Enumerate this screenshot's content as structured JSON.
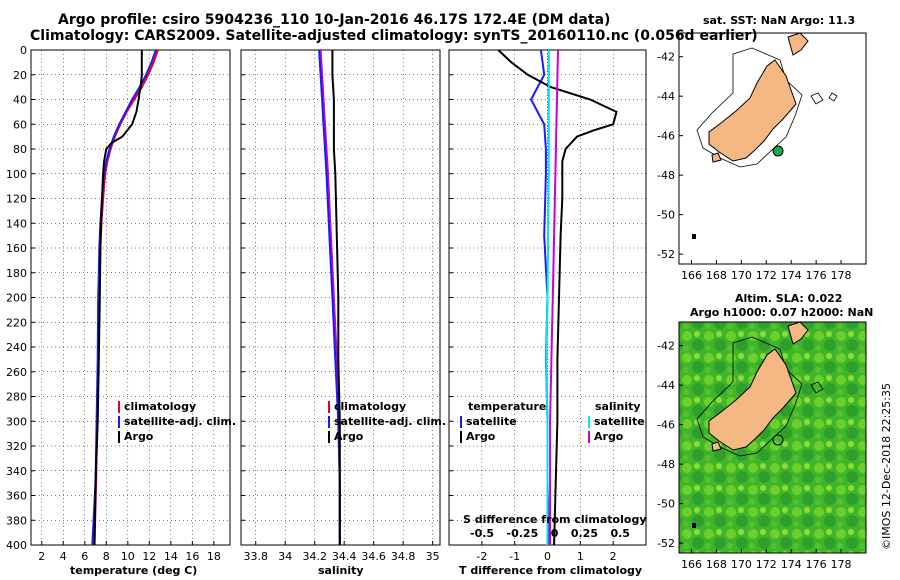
{
  "title": {
    "line1": "Argo profile: csiro 5904236_110 10-Jan-2016 46.17S 172.4E (DM data)",
    "line2": "Climatology: CARS2009. Satellite-adjusted climatology: synTS_20160110.nc (0.056d earlier)"
  },
  "side": {
    "sst_title": "sat. SST: NaN Argo: 11.3",
    "sla_title1": "Altim. SLA: 0.022",
    "sla_title2": "Argo h1000: 0.07 h2000: NaN",
    "credit": "©IMOS 12-Dec-2018 22:25:35"
  },
  "depth_ticks": [
    "0",
    "20",
    "40",
    "60",
    "80",
    "100",
    "120",
    "140",
    "160",
    "180",
    "200",
    "220",
    "240",
    "260",
    "280",
    "300",
    "320",
    "340",
    "360",
    "380",
    "400"
  ],
  "colors": {
    "climatology": "#e8001c",
    "satellite": "#1a1aff",
    "argo": "#000000",
    "satellite_s": "#00e5ee",
    "climatology_s": "#cc00cc",
    "land": "#f5b883",
    "sst_dot": "#1aa84a"
  },
  "chart_data": [
    {
      "type": "line",
      "name": "temperature-profile",
      "xlabel": "temperature (deg C)",
      "ylabel": "depth",
      "xlim": [
        1,
        19.5
      ],
      "ylim": [
        400,
        0
      ],
      "xticks": [
        "2",
        "4",
        "6",
        "8",
        "10",
        "12",
        "14",
        "16",
        "18"
      ],
      "legend": [
        "climatology",
        "satellite-adj. clim.",
        "Argo"
      ],
      "series": [
        {
          "name": "climatology",
          "depth": [
            0,
            10,
            20,
            30,
            40,
            50,
            60,
            70,
            80,
            90,
            100,
            110,
            120,
            140,
            160,
            180,
            200,
            250,
            300,
            350,
            400
          ],
          "values": [
            12.8,
            12.4,
            11.9,
            11.3,
            10.6,
            9.9,
            9.3,
            8.8,
            8.4,
            8.1,
            7.9,
            7.8,
            7.7,
            7.55,
            7.45,
            7.4,
            7.35,
            7.25,
            7.15,
            7.05,
            6.9
          ]
        },
        {
          "name": "satellite-adj. clim.",
          "depth": [
            0,
            10,
            20,
            30,
            40,
            50,
            60,
            70,
            80,
            90,
            100,
            110,
            120,
            140,
            160,
            180,
            200,
            250,
            300,
            350,
            400
          ],
          "values": [
            12.6,
            12.2,
            11.7,
            11.1,
            10.4,
            9.8,
            9.2,
            8.7,
            8.3,
            8.0,
            7.8,
            7.7,
            7.6,
            7.45,
            7.35,
            7.3,
            7.25,
            7.2,
            7.1,
            7.0,
            6.7
          ]
        },
        {
          "name": "Argo",
          "depth": [
            0,
            10,
            20,
            30,
            34,
            40,
            50,
            60,
            70,
            75,
            80,
            90,
            100,
            120,
            140,
            160,
            200,
            250,
            300,
            350,
            400
          ],
          "values": [
            11.3,
            11.3,
            11.3,
            11.2,
            11.1,
            11.0,
            10.8,
            10.4,
            9.5,
            8.5,
            8.0,
            7.8,
            7.7,
            7.6,
            7.5,
            7.45,
            7.4,
            7.3,
            7.2,
            7.0,
            6.9
          ]
        }
      ]
    },
    {
      "type": "line",
      "name": "salinity-profile",
      "xlabel": "salinity",
      "ylabel": "depth",
      "xlim": [
        33.7,
        35.05
      ],
      "ylim": [
        400,
        0
      ],
      "xticks": [
        "33.8",
        "34",
        "34.2",
        "34.4",
        "34.6",
        "34.8",
        "35"
      ],
      "legend": [
        "climatology",
        "satellite-adj. clim.",
        "Argo"
      ],
      "series": [
        {
          "name": "climatology",
          "depth": [
            0,
            20,
            40,
            60,
            80,
            100,
            150,
            200,
            250,
            300,
            350,
            400
          ],
          "values": [
            34.24,
            34.25,
            34.26,
            34.27,
            34.28,
            34.29,
            34.31,
            34.33,
            34.35,
            34.36,
            34.37,
            34.37
          ]
        },
        {
          "name": "satellite-adj. clim.",
          "depth": [
            0,
            20,
            40,
            60,
            80,
            100,
            150,
            200,
            250,
            300,
            350,
            400
          ],
          "values": [
            34.23,
            34.24,
            34.25,
            34.26,
            34.27,
            34.28,
            34.3,
            34.32,
            34.34,
            34.36,
            34.37,
            34.37
          ]
        },
        {
          "name": "Argo",
          "depth": [
            0,
            20,
            40,
            60,
            80,
            100,
            150,
            200,
            250,
            300,
            350,
            400
          ],
          "values": [
            34.32,
            34.32,
            34.33,
            34.33,
            34.33,
            34.34,
            34.35,
            34.36,
            34.36,
            34.37,
            34.37,
            34.37
          ]
        }
      ]
    },
    {
      "type": "line",
      "name": "difference-profile",
      "xlabel": "T difference from climatology",
      "xlabel_s": "S difference from climatology",
      "ylabel": "depth",
      "xlim": [
        -3,
        3
      ],
      "ylim": [
        400,
        0
      ],
      "xticks": [
        "-2",
        "-1",
        "0",
        "1",
        "2"
      ],
      "xticks_s": [
        "-0.5",
        "-0.25",
        "0",
        "0.25",
        "0.5"
      ],
      "legend_t": {
        "title": "temperature",
        "items": [
          "satellite",
          "Argo"
        ]
      },
      "legend_s": {
        "title": "salinity",
        "items": [
          "satellite",
          "Argo"
        ]
      },
      "series": [
        {
          "name": "T satellite",
          "depth": [
            0,
            10,
            20,
            30,
            40,
            50,
            60,
            80,
            100,
            150,
            200,
            250,
            300,
            350,
            400
          ],
          "values": [
            -0.2,
            -0.15,
            -0.1,
            -0.3,
            -0.5,
            -0.3,
            -0.1,
            -0.05,
            -0.05,
            -0.1,
            0,
            -0.05,
            0,
            0,
            0.05
          ]
        },
        {
          "name": "T Argo",
          "depth": [
            0,
            10,
            20,
            30,
            40,
            50,
            60,
            65,
            70,
            80,
            90,
            100,
            120,
            150,
            200,
            250,
            300,
            350,
            400
          ],
          "values": [
            -1.5,
            -1.1,
            -0.6,
            0.1,
            1.3,
            2.1,
            2.0,
            1.4,
            0.9,
            0.55,
            0.45,
            0.45,
            0.45,
            0.4,
            0.35,
            0.3,
            0.3,
            0.25,
            0.2
          ]
        },
        {
          "name": "S satellite",
          "depth": [
            0,
            50,
            100,
            150,
            200,
            250,
            300,
            350,
            400
          ],
          "values": [
            0.01,
            0.01,
            0.01,
            0.005,
            0,
            -0.01,
            0,
            0,
            0
          ]
        },
        {
          "name": "S Argo",
          "depth": [
            0,
            50,
            100,
            150,
            200,
            250,
            300,
            350,
            400
          ],
          "values": [
            0.08,
            0.07,
            0.06,
            0.05,
            0.04,
            0.03,
            0.02,
            0.02,
            0.02
          ]
        }
      ]
    },
    {
      "type": "map",
      "name": "sst-map",
      "title": "sat. SST: NaN Argo: 11.3",
      "xlim": [
        165,
        180
      ],
      "ylim": [
        -52.5,
        -40.8
      ],
      "xticks": [
        "166",
        "168",
        "170",
        "172",
        "174",
        "176",
        "178"
      ],
      "yticks": [
        "-42",
        "-44",
        "-46",
        "-48",
        "-50",
        "-52"
      ],
      "argo_position": {
        "lon": 172.4,
        "lat": -46.17
      }
    },
    {
      "type": "map",
      "name": "sla-map",
      "title": "Argo h1000: 0.07 h2000: NaN",
      "xlim": [
        165,
        180
      ],
      "ylim": [
        -52.5,
        -40.8
      ],
      "xticks": [
        "166",
        "168",
        "170",
        "172",
        "174",
        "176",
        "178"
      ],
      "yticks": [
        "-42",
        "-44",
        "-46",
        "-48",
        "-50",
        "-52"
      ],
      "argo_position": {
        "lon": 172.4,
        "lat": -46.17
      }
    }
  ]
}
